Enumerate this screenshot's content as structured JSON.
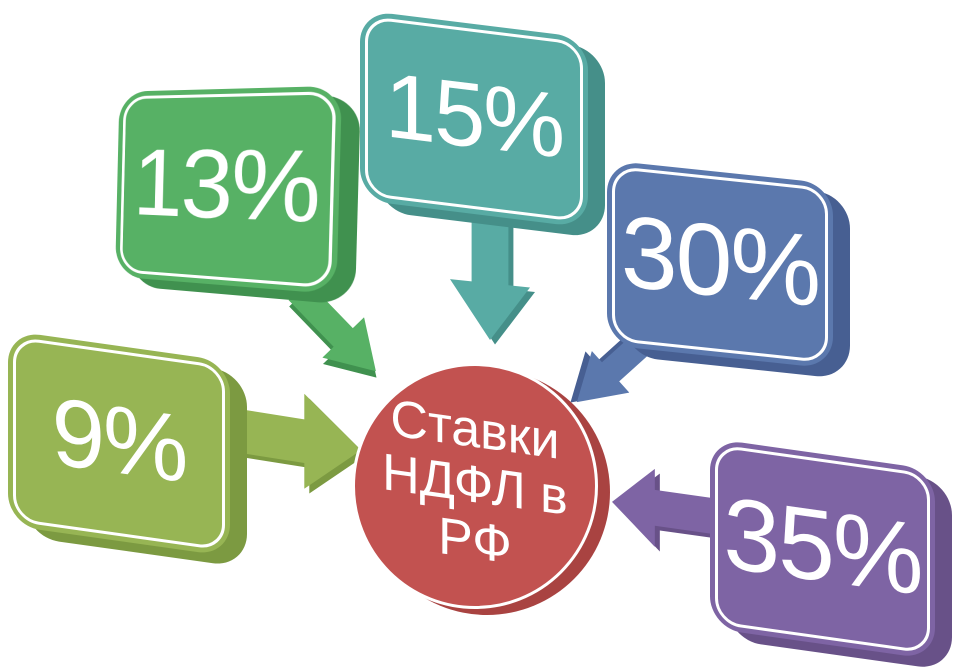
{
  "diagram": {
    "type": "converging-radial",
    "text_color": "#ffffff",
    "background": "#ffffff",
    "center": {
      "label": "Ставки НДФЛ в РФ",
      "lines": [
        "Ставки",
        "НДФЛ в",
        "РФ"
      ],
      "color": "#c25250",
      "depth_color": "#a94341"
    },
    "nodes": [
      {
        "id": "rate-13",
        "label": "13%",
        "color": "#57b165",
        "depth_color": "#40914f",
        "arrow_direction": "down-right"
      },
      {
        "id": "rate-15",
        "label": "15%",
        "color": "#58aba4",
        "depth_color": "#458f89",
        "arrow_direction": "down"
      },
      {
        "id": "rate-30",
        "label": "30%",
        "color": "#5b78ad",
        "depth_color": "#475f92",
        "arrow_direction": "down-left"
      },
      {
        "id": "rate-9",
        "label": "9%",
        "color": "#97b554",
        "depth_color": "#7c9a41",
        "arrow_direction": "right"
      },
      {
        "id": "rate-35",
        "label": "35%",
        "color": "#7e64a4",
        "depth_color": "#685188",
        "arrow_direction": "left"
      }
    ]
  }
}
